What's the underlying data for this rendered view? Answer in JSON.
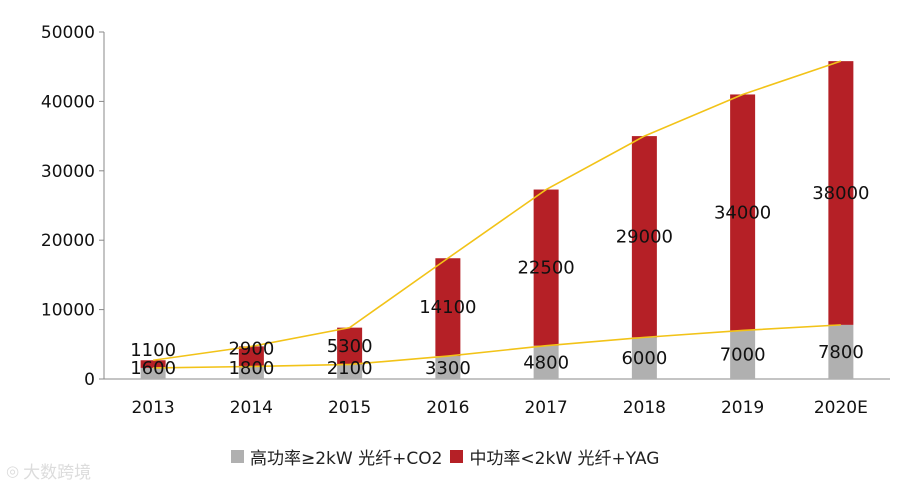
{
  "chart_data": {
    "type": "bar",
    "stacked": true,
    "categories": [
      "2013",
      "2014",
      "2015",
      "2016",
      "2017",
      "2018",
      "2019",
      "2020E"
    ],
    "series": [
      {
        "name": "高功率≥2kW 光纤+CO2",
        "values": [
          1600,
          1800,
          2100,
          3300,
          4800,
          6000,
          7000,
          7800
        ],
        "color": "#b0b0b0"
      },
      {
        "name": "中功率<2kW 光纤+YAG",
        "values": [
          1100,
          2900,
          5300,
          14100,
          22500,
          29000,
          34000,
          38000
        ],
        "color": "#b52026"
      }
    ],
    "trend_lines": {
      "color": "#f2c318",
      "note": "lines connect bar tops of each series"
    },
    "ylim": [
      0,
      50000
    ],
    "yticks": [
      "0",
      "10000",
      "20000",
      "30000",
      "40000",
      "50000"
    ],
    "grid": false,
    "legend_position": "bottom",
    "title": "",
    "xlabel": "",
    "ylabel": ""
  },
  "watermark": {
    "text": "大数跨境",
    "icon": "logo-icon"
  }
}
